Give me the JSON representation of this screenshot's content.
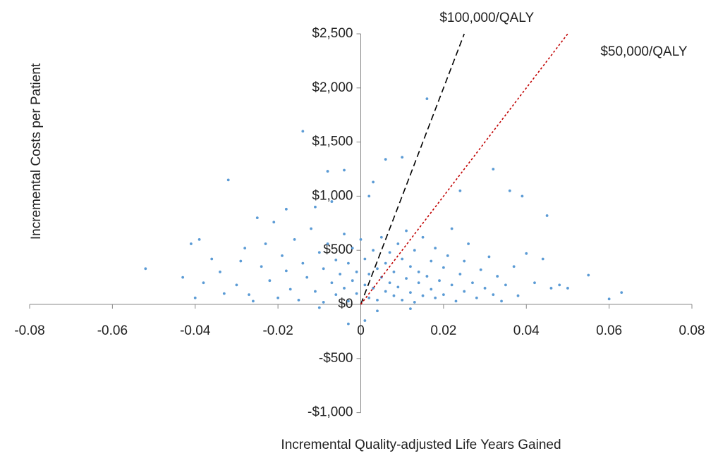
{
  "chart_data": {
    "type": "scatter",
    "xlabel": "Incremental Quality-adjusted Life Years Gained",
    "ylabel": "Incremental Costs per Patient",
    "xlim": [
      -0.08,
      0.08
    ],
    "xticks": [
      -0.08,
      -0.06,
      -0.04,
      -0.02,
      0,
      0.02,
      0.04,
      0.06,
      0.08
    ],
    "ylim": [
      -1000,
      2500
    ],
    "yticks": [
      {
        "value": -1000,
        "label": "-$1,000"
      },
      {
        "value": -500,
        "label": "-$500"
      },
      {
        "value": 0,
        "label": "$0"
      },
      {
        "value": 500,
        "label": "$500"
      },
      {
        "value": 1000,
        "label": "$1,000"
      },
      {
        "value": 1500,
        "label": "$1,500"
      },
      {
        "value": 2000,
        "label": "$2,000"
      },
      {
        "value": 2500,
        "label": "$2,500"
      }
    ],
    "grid": false,
    "series": [
      {
        "color": "#5b9bd5",
        "x": [
          -0.052,
          -0.032,
          -0.014,
          0.016,
          0.01,
          0.032,
          0.045,
          0.055,
          0.063,
          0.06,
          -0.043,
          -0.039,
          -0.041,
          0.039,
          0.036,
          0.006,
          -0.004,
          -0.008,
          0.003,
          0.002,
          0.024,
          -0.036,
          -0.034,
          -0.03,
          -0.028,
          -0.027,
          -0.025,
          -0.024,
          -0.022,
          -0.021,
          -0.02,
          -0.019,
          -0.018,
          -0.017,
          -0.016,
          -0.015,
          -0.014,
          -0.013,
          -0.012,
          -0.011,
          -0.01,
          -0.009,
          -0.009,
          -0.008,
          -0.007,
          -0.006,
          -0.006,
          -0.005,
          -0.004,
          -0.004,
          -0.003,
          -0.003,
          -0.002,
          -0.002,
          -0.001,
          -0.001,
          0.0,
          0.001,
          0.001,
          0.002,
          0.002,
          0.003,
          0.003,
          0.004,
          0.004,
          0.005,
          0.005,
          0.006,
          0.006,
          0.007,
          0.007,
          0.008,
          0.008,
          0.009,
          0.009,
          0.01,
          0.01,
          0.011,
          0.011,
          0.012,
          0.012,
          0.013,
          0.013,
          0.014,
          0.014,
          0.015,
          0.015,
          0.016,
          0.017,
          0.017,
          0.018,
          0.018,
          0.019,
          0.02,
          0.02,
          0.021,
          0.022,
          0.022,
          0.023,
          0.024,
          0.025,
          0.025,
          0.026,
          0.027,
          0.028,
          0.029,
          0.03,
          0.031,
          0.032,
          0.033,
          0.034,
          0.035,
          0.037,
          0.038,
          0.04,
          0.042,
          0.044,
          0.046,
          0.048,
          0.05,
          -0.04,
          -0.038,
          -0.033,
          -0.029,
          -0.026,
          -0.023,
          -0.018,
          -0.011,
          -0.007,
          0.001,
          -0.003,
          0.004,
          0.012,
          -0.01
        ],
        "values": [
          330,
          1150,
          1600,
          1900,
          1360,
          1250,
          820,
          270,
          110,
          50,
          250,
          600,
          560,
          1000,
          1050,
          1340,
          1240,
          1230,
          1130,
          1000,
          1050,
          420,
          300,
          180,
          520,
          90,
          800,
          350,
          220,
          760,
          60,
          450,
          310,
          140,
          600,
          40,
          380,
          250,
          700,
          120,
          480,
          20,
          330,
          560,
          200,
          90,
          410,
          280,
          650,
          150,
          30,
          380,
          220,
          520,
          100,
          300,
          600,
          180,
          420,
          60,
          280,
          500,
          150,
          330,
          40,
          250,
          620,
          120,
          380,
          200,
          480,
          80,
          300,
          560,
          160,
          40,
          420,
          240,
          680,
          110,
          350,
          20,
          500,
          200,
          300,
          80,
          620,
          260,
          400,
          140,
          60,
          520,
          220,
          340,
          90,
          450,
          180,
          700,
          30,
          280,
          400,
          120,
          560,
          200,
          60,
          320,
          150,
          440,
          90,
          260,
          30,
          180,
          350,
          80,
          470,
          200,
          420,
          150,
          180,
          150,
          60,
          200,
          100,
          400,
          30,
          560,
          880,
          900,
          950,
          -150,
          -180,
          -60,
          -40,
          -30
        ]
      }
    ],
    "lines": [
      {
        "label": "$100,000/QALY",
        "color": "#000000",
        "x": [
          0,
          0.025
        ],
        "y": [
          0,
          2500
        ]
      },
      {
        "label": "$50,000/QALY",
        "color": "#c00000",
        "x": [
          0,
          0.05
        ],
        "y": [
          0,
          2500
        ]
      }
    ]
  }
}
